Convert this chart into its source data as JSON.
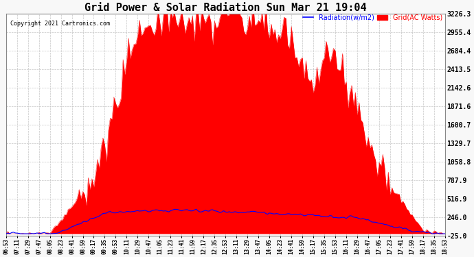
{
  "title": "Grid Power & Solar Radiation Sun Mar 21 19:04",
  "copyright": "Copyright 2021 Cartronics.com",
  "legend_radiation": "Radiation(w/m2)",
  "legend_grid": "Grid(AC Watts)",
  "yticks": [
    -25.0,
    246.0,
    516.9,
    787.9,
    1058.8,
    1329.7,
    1600.7,
    1871.6,
    2142.6,
    2413.5,
    2684.4,
    2955.4,
    3226.3
  ],
  "ymin": -25.0,
  "ymax": 3226.3,
  "background_color": "#f8f8f8",
  "plot_background": "#ffffff",
  "grid_color": "#aaaaaa",
  "fill_color": "#ff0000",
  "line_color_radiation": "#0000ff",
  "line_color_grid": "#ff0000",
  "xtick_labels": [
    "06:53",
    "07:11",
    "07:29",
    "07:47",
    "08:05",
    "08:23",
    "08:41",
    "08:59",
    "09:17",
    "09:35",
    "09:53",
    "10:11",
    "10:29",
    "10:47",
    "11:05",
    "11:23",
    "11:41",
    "11:59",
    "12:17",
    "12:35",
    "12:53",
    "13:11",
    "13:29",
    "13:47",
    "14:05",
    "14:23",
    "14:41",
    "14:59",
    "15:17",
    "15:35",
    "15:53",
    "16:11",
    "16:29",
    "16:47",
    "17:05",
    "17:23",
    "17:41",
    "17:59",
    "18:17",
    "18:35",
    "18:53"
  ]
}
